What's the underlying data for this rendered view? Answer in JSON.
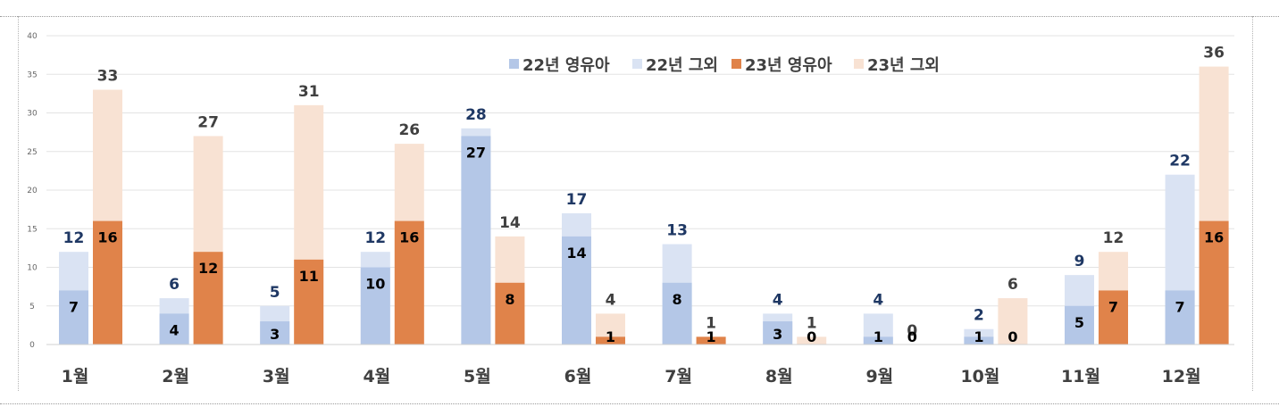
{
  "chart_data": {
    "type": "bar",
    "categories": [
      "1월",
      "2월",
      "3월",
      "4월",
      "5월",
      "6월",
      "7월",
      "8월",
      "9월",
      "10월",
      "11월",
      "12월"
    ],
    "ylim": [
      0,
      40
    ],
    "yticks": [
      0,
      5,
      10,
      15,
      20,
      25,
      30,
      35,
      40
    ],
    "grid": true,
    "legend_position": "top-center",
    "series": [
      {
        "name": "22년 영유아",
        "values": [
          7,
          4,
          3,
          10,
          27,
          14,
          8,
          3,
          1,
          1,
          5,
          7
        ],
        "color": "#b4c7e7"
      },
      {
        "name": "22년 그외",
        "values": [
          12,
          6,
          5,
          12,
          28,
          17,
          13,
          4,
          4,
          2,
          9,
          22
        ],
        "color": "#dae3f3"
      },
      {
        "name": "23년 영유아",
        "values": [
          16,
          12,
          11,
          16,
          8,
          1,
          1,
          0,
          0,
          0,
          7,
          16
        ],
        "color": "#e0834a"
      },
      {
        "name": "23년 그외",
        "values": [
          33,
          27,
          31,
          26,
          14,
          4,
          1,
          1,
          0,
          6,
          12,
          36
        ],
        "color": "#f8e2d3"
      }
    ],
    "label_colors": {
      "y22_total": "#1f3864",
      "y23_total": "#404040",
      "inner": "#000000"
    }
  }
}
